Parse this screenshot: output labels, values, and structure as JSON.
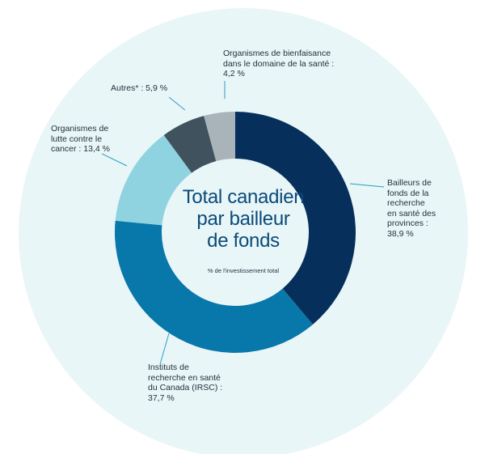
{
  "chart_data": {
    "type": "pie",
    "title_lines": [
      "Total canadien",
      "par bailleur",
      "de fonds"
    ],
    "subtitle": "% de l'investissement total",
    "slices": [
      {
        "label_lines": [
          "Bailleurs de",
          "fonds de la",
          "recherche",
          "en santé des",
          "provinces :",
          "38,9 %"
        ],
        "value": 38.9,
        "color": "#062f5c"
      },
      {
        "label_lines": [
          "Instituts de",
          "recherche en santé",
          "du Canada (IRSC) :",
          "37,7 %"
        ],
        "value": 37.7,
        "color": "#0877aa"
      },
      {
        "label_lines": [
          "Organismes de",
          "lutte contre le",
          "cancer :  13,4 %"
        ],
        "value": 13.4,
        "color": "#8fd3e0"
      },
      {
        "label_lines": [
          "Autres* :  5,9 %"
        ],
        "value": 5.9,
        "color": "#3f525e"
      },
      {
        "label_lines": [
          "Organismes de bienfaisance",
          "dans le domaine de la santé :",
          "4,2 %"
        ],
        "value": 4.2,
        "color": "#a9b3ba"
      }
    ],
    "background_color": "#e9f6f7",
    "leader_color": "#2a9ec0"
  }
}
